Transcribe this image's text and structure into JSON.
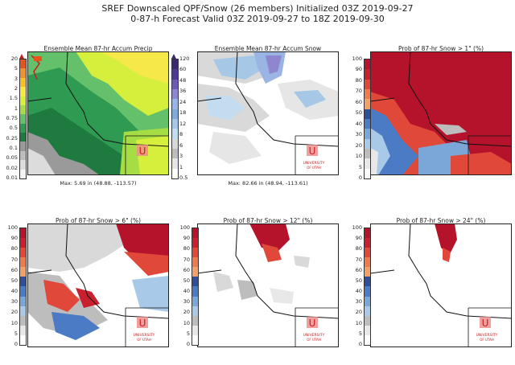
{
  "header": {
    "line1": "SREF Downscaled QPF/Snow (26 members) Initialized 03Z 2019-09-27",
    "line2": "0-87-h Forecast Valid 03Z 2019-09-27 to 18Z 2019-09-30"
  },
  "logo": {
    "letter": "U",
    "text1": "UNIVERSITY",
    "text2": "OF UTAH"
  },
  "panels": [
    {
      "title": "Ensemble Mean 87-hr Accum Precip",
      "max_label": "Max: 5.69 in (48.88, -113.57)",
      "ticks": [
        "20",
        "5",
        "3",
        "2",
        "1.5",
        "1",
        "0.75",
        "0.5",
        "0.25",
        "0.1",
        "0.05",
        "0.02",
        "0.01"
      ],
      "colors": [
        "#e8541b",
        "#f0922b",
        "#f5c02a",
        "#f7e84a",
        "#d6ef3d",
        "#a7dd44",
        "#64c06a",
        "#2f9a52",
        "#1e7a3f",
        "#9a9a9a",
        "#bdbdbd",
        "#dcdcdc",
        "#f4f4f4"
      ],
      "arrow_color": "#c81d1d"
    },
    {
      "title": "Ensemble Mean 87-hr Accum Snow",
      "max_label": "Max: 82.66 in (48.94, -113.61)",
      "ticks": [
        "120",
        "60",
        "48",
        "36",
        "24",
        "18",
        "12",
        "8",
        "6",
        "3",
        "1",
        "0.5"
      ],
      "colors": [
        "#3a2b6e",
        "#4d3d8f",
        "#6e5ab0",
        "#8e86cf",
        "#9ab4e3",
        "#82a9d8",
        "#a6c8e6",
        "#c4dcef",
        "#d9d9d9",
        "#bdbdbd",
        "#e6e6e6",
        "#ffffff"
      ],
      "arrow_color": "#3a2b6e"
    },
    {
      "title": "Prob of 87-hr Snow > 1\" (%)",
      "ticks": [
        "100",
        "90",
        "80",
        "70",
        "60",
        "50",
        "40",
        "30",
        "20",
        "10",
        "5",
        "0"
      ],
      "colors": [
        "#b5132b",
        "#c8202e",
        "#e0483a",
        "#ef7a4e",
        "#f3a06a",
        "#2f4f9b",
        "#4a7bc4",
        "#7aa6d8",
        "#a9c9e8",
        "#bdbdbd",
        "#e8e8e8",
        "#ffffff"
      ]
    },
    {
      "title": "Prob of 87-hr Snow > 6\" (%)",
      "ticks": [
        "100",
        "90",
        "80",
        "70",
        "60",
        "50",
        "40",
        "30",
        "20",
        "10",
        "5",
        "0"
      ],
      "colors": [
        "#b5132b",
        "#c8202e",
        "#e0483a",
        "#ef7a4e",
        "#f3a06a",
        "#2f4f9b",
        "#4a7bc4",
        "#7aa6d8",
        "#a9c9e8",
        "#bdbdbd",
        "#e8e8e8",
        "#ffffff"
      ]
    },
    {
      "title": "Prob of 87-hr Snow > 12\" (%)",
      "ticks": [
        "100",
        "90",
        "80",
        "70",
        "60",
        "50",
        "40",
        "30",
        "20",
        "10",
        "5",
        "0"
      ],
      "colors": [
        "#b5132b",
        "#c8202e",
        "#e0483a",
        "#ef7a4e",
        "#f3a06a",
        "#2f4f9b",
        "#4a7bc4",
        "#7aa6d8",
        "#a9c9e8",
        "#bdbdbd",
        "#e8e8e8",
        "#ffffff"
      ]
    },
    {
      "title": "Prob of 87-hr Snow > 24\" (%)",
      "ticks": [
        "100",
        "90",
        "80",
        "70",
        "60",
        "50",
        "40",
        "30",
        "20",
        "10",
        "5",
        "0"
      ],
      "colors": [
        "#b5132b",
        "#c8202e",
        "#e0483a",
        "#ef7a4e",
        "#f3a06a",
        "#2f4f9b",
        "#4a7bc4",
        "#7aa6d8",
        "#a9c9e8",
        "#bdbdbd",
        "#e8e8e8",
        "#ffffff"
      ]
    }
  ]
}
